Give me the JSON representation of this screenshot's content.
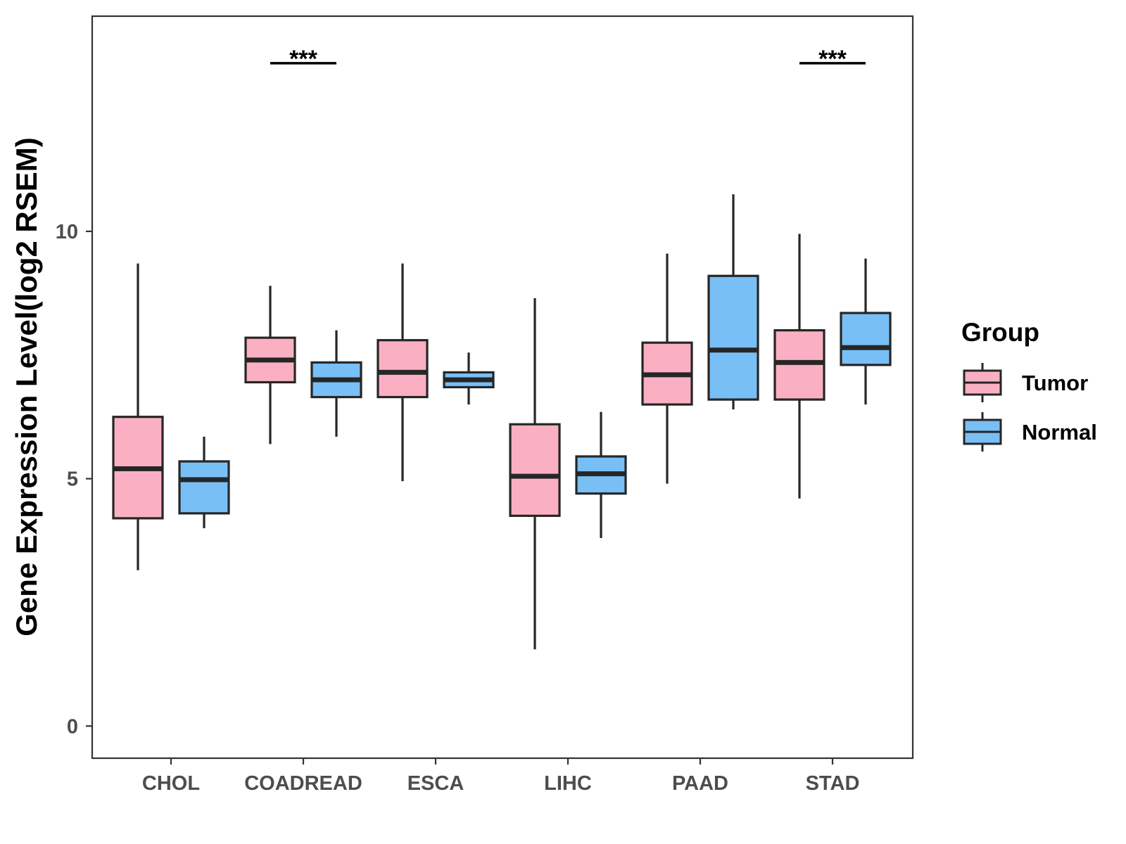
{
  "chart_data": {
    "type": "boxplot",
    "title": "",
    "xlabel": "",
    "ylabel": "Gene Expression Level(log2 RSEM)",
    "ylim": [
      -0.65,
      14.35
    ],
    "yticks": [
      0,
      5,
      10
    ],
    "ytick_labels": [
      "0",
      "5",
      "10"
    ],
    "grid": false,
    "categories": [
      "CHOL",
      "COADREAD",
      "ESCA",
      "LIHC",
      "PAAD",
      "STAD"
    ],
    "legend": {
      "title": "Group",
      "position": "right",
      "entries": [
        "Tumor",
        "Normal"
      ]
    },
    "series": [
      {
        "name": "Tumor",
        "color": "#fab0c2",
        "boxes": [
          {
            "whisker_low": 3.15,
            "q1": 4.2,
            "median": 5.2,
            "q3": 6.25,
            "whisker_high": 9.35
          },
          {
            "whisker_low": 5.7,
            "q1": 6.95,
            "median": 7.4,
            "q3": 7.85,
            "whisker_high": 8.9
          },
          {
            "whisker_low": 4.95,
            "q1": 6.65,
            "median": 7.15,
            "q3": 7.8,
            "whisker_high": 9.35
          },
          {
            "whisker_low": 1.55,
            "q1": 4.25,
            "median": 5.05,
            "q3": 6.1,
            "whisker_high": 8.65
          },
          {
            "whisker_low": 4.9,
            "q1": 6.5,
            "median": 7.1,
            "q3": 7.75,
            "whisker_high": 9.55
          },
          {
            "whisker_low": 4.6,
            "q1": 6.6,
            "median": 7.35,
            "q3": 8.0,
            "whisker_high": 9.95
          }
        ]
      },
      {
        "name": "Normal",
        "color": "#78bff6",
        "boxes": [
          {
            "whisker_low": 4.0,
            "q1": 4.3,
            "median": 4.98,
            "q3": 5.35,
            "whisker_high": 5.85
          },
          {
            "whisker_low": 5.85,
            "q1": 6.65,
            "median": 7.0,
            "q3": 7.35,
            "whisker_high": 8.0
          },
          {
            "whisker_low": 6.5,
            "q1": 6.85,
            "median": 7.0,
            "q3": 7.15,
            "whisker_high": 7.55
          },
          {
            "whisker_low": 3.8,
            "q1": 4.7,
            "median": 5.1,
            "q3": 5.45,
            "whisker_high": 6.35
          },
          {
            "whisker_low": 6.4,
            "q1": 6.6,
            "median": 7.6,
            "q3": 9.1,
            "whisker_high": 10.75
          },
          {
            "whisker_low": 6.5,
            "q1": 7.3,
            "median": 7.65,
            "q3": 8.35,
            "whisker_high": 9.45
          }
        ]
      }
    ],
    "annotations": [
      {
        "category": "COADREAD",
        "text": "***",
        "y": 13.4
      },
      {
        "category": "STAD",
        "text": "***",
        "y": 13.4
      }
    ]
  },
  "colors": {
    "tumor": "#fab0c2",
    "normal": "#78bff6",
    "outline": "#262626",
    "panel_border": "#333333",
    "tick_text": "#4d4d4d"
  }
}
